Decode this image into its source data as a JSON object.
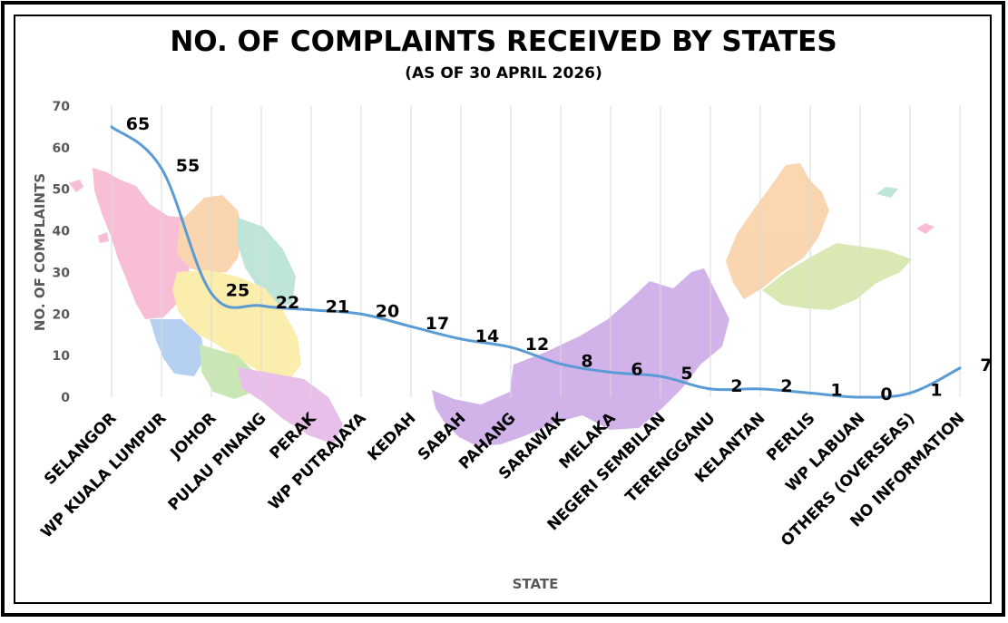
{
  "chart_data": {
    "type": "line",
    "title": "NO. OF COMPLAINTS RECEIVED BY STATES",
    "subtitle": "(AS OF 30 APRIL 2026)",
    "xlabel": "STATE",
    "ylabel": "NO. OF COMPLAINTS",
    "ylim": [
      0,
      70
    ],
    "yticks": [
      0,
      10,
      20,
      30,
      40,
      50,
      60,
      70
    ],
    "grid": "vertical",
    "legend": "none",
    "line_color": "#5b9bd5",
    "categories": [
      "SELANGOR",
      "WP KUALA LUMPUR",
      "JOHOR",
      "PULAU PINANG",
      "PERAK",
      "WP PUTRAJAYA",
      "KEDAH",
      "SABAH",
      "PAHANG",
      "SARAWAK",
      "MELAKA",
      "NEGERI SEMBILAN",
      "TERENGGANU",
      "KELANTAN",
      "PERLIS",
      "WP LABUAN",
      "OTHERS (OVERSEAS)",
      "NO INFORMATION"
    ],
    "series": [
      {
        "values": [
          65,
          55,
          25,
          22,
          21,
          20,
          17,
          14,
          12,
          8,
          6,
          5,
          2,
          2,
          1,
          0,
          1,
          7
        ]
      }
    ]
  }
}
